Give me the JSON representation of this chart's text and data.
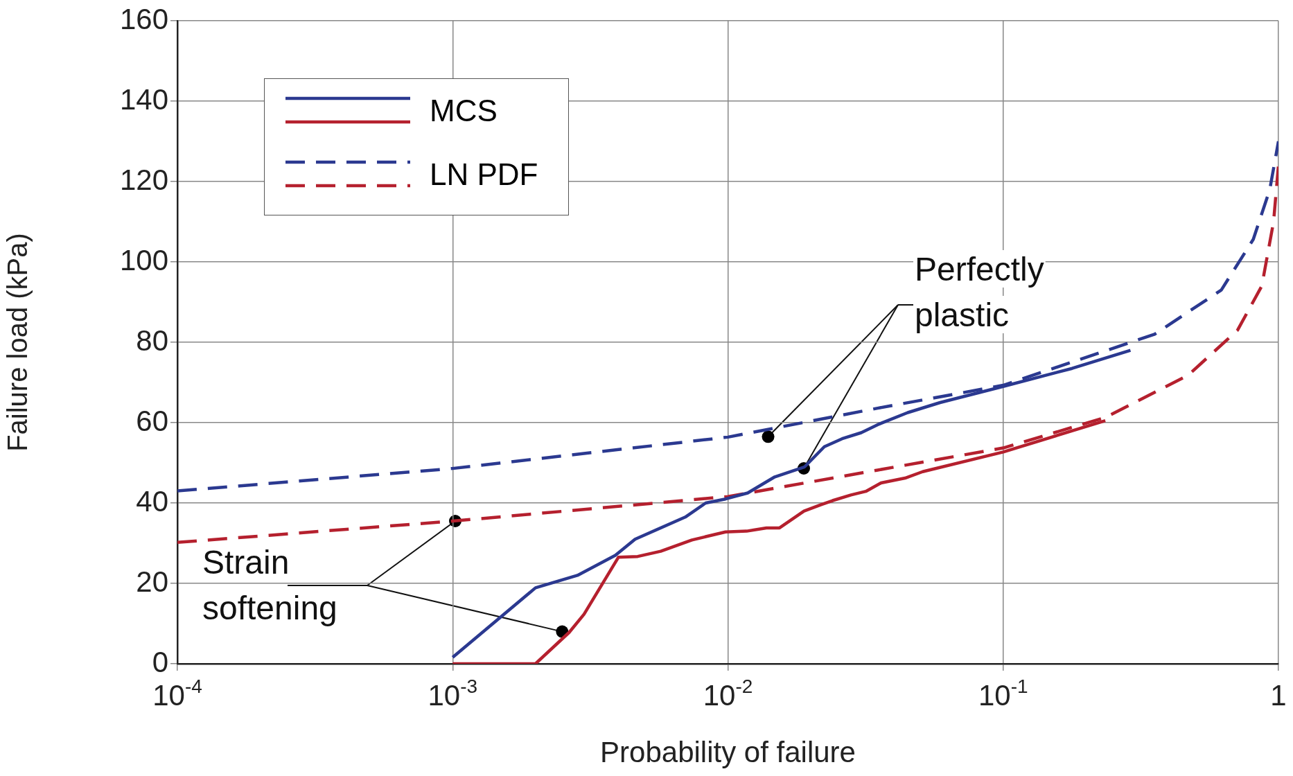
{
  "chart_data": {
    "type": "line",
    "xlabel": "Probability of failure",
    "ylabel": "Failure load (kPa)",
    "log": "x",
    "xlim": [
      0.0001,
      1
    ],
    "xticks": [
      {
        "value": 0.0001,
        "label": "10$^{-4}$"
      },
      {
        "value": 0.001,
        "label": "10$^{-3}$"
      },
      {
        "value": 0.01,
        "label": "10$^{-2}$"
      },
      {
        "value": 0.1,
        "label": "10$^{-1}$"
      },
      1
    ],
    "ylim": [
      0,
      160
    ],
    "yticks": [
      0,
      20,
      40,
      60,
      80,
      100,
      120,
      140,
      160
    ],
    "grid": true,
    "legend": "top left",
    "marker": "none",
    "series": [
      {
        "name": "MCS",
        "color": "#2b3990",
        "line_style": "solid",
        "x": [
          0.001,
          0.002,
          0.00284,
          0.0039,
          0.0046,
          0.007,
          0.0083,
          0.0098,
          0.0118,
          0.0148,
          0.019,
          0.0224,
          0.026,
          0.0305,
          0.035,
          0.045,
          0.059,
          0.1,
          0.178,
          0.29
        ],
        "values": [
          1.6,
          18.9,
          22,
          27,
          31,
          36.5,
          40,
          41,
          42.5,
          46.5,
          49,
          54,
          56,
          57.5,
          59.5,
          62.5,
          65,
          69,
          73.5,
          78
        ]
      },
      {
        "color": "#b5202e",
        "line_style": "solid",
        "x": [
          0.001,
          0.002,
          0.00265,
          0.003,
          0.004,
          0.0047,
          0.0057,
          0.0074,
          0.0098,
          0.0117,
          0.0138,
          0.0154,
          0.0189,
          0.0218,
          0.024,
          0.028,
          0.0317,
          0.036,
          0.044,
          0.051,
          0.1,
          0.235
        ],
        "values": [
          0,
          0,
          7.8,
          12.3,
          26.5,
          26.7,
          28,
          30.8,
          32.8,
          33,
          33.8,
          33.8,
          38,
          39.6,
          40.6,
          42,
          42.9,
          45,
          46.2,
          47.8,
          52.7,
          60.5
        ]
      },
      {
        "name": "LN PDF",
        "color": "#2b3990",
        "line_style": "dashed",
        "x": [
          0.0001,
          0.001,
          0.01,
          0.035,
          0.1,
          0.355,
          0.62,
          0.81,
          0.93,
          1
        ],
        "values": [
          43,
          48.6,
          56.4,
          63.6,
          69.3,
          82,
          93,
          105.6,
          118,
          130
        ]
      },
      {
        "color": "#b5202e",
        "line_style": "dashed",
        "x": [
          0.0001,
          0.001,
          0.01,
          0.035,
          0.1,
          0.235,
          0.47,
          0.71,
          0.87,
          0.96,
          1
        ],
        "values": [
          30.2,
          35.5,
          41.6,
          48.2,
          53.7,
          61.3,
          71.8,
          83,
          94,
          110,
          124
        ]
      }
    ],
    "annotations": [
      {
        "text": "Perfectly plastic",
        "x": 0.014,
        "y": 56.5
      },
      {
        "text": "Strain softening",
        "x": 0.0025,
        "y": 8
      }
    ]
  }
}
